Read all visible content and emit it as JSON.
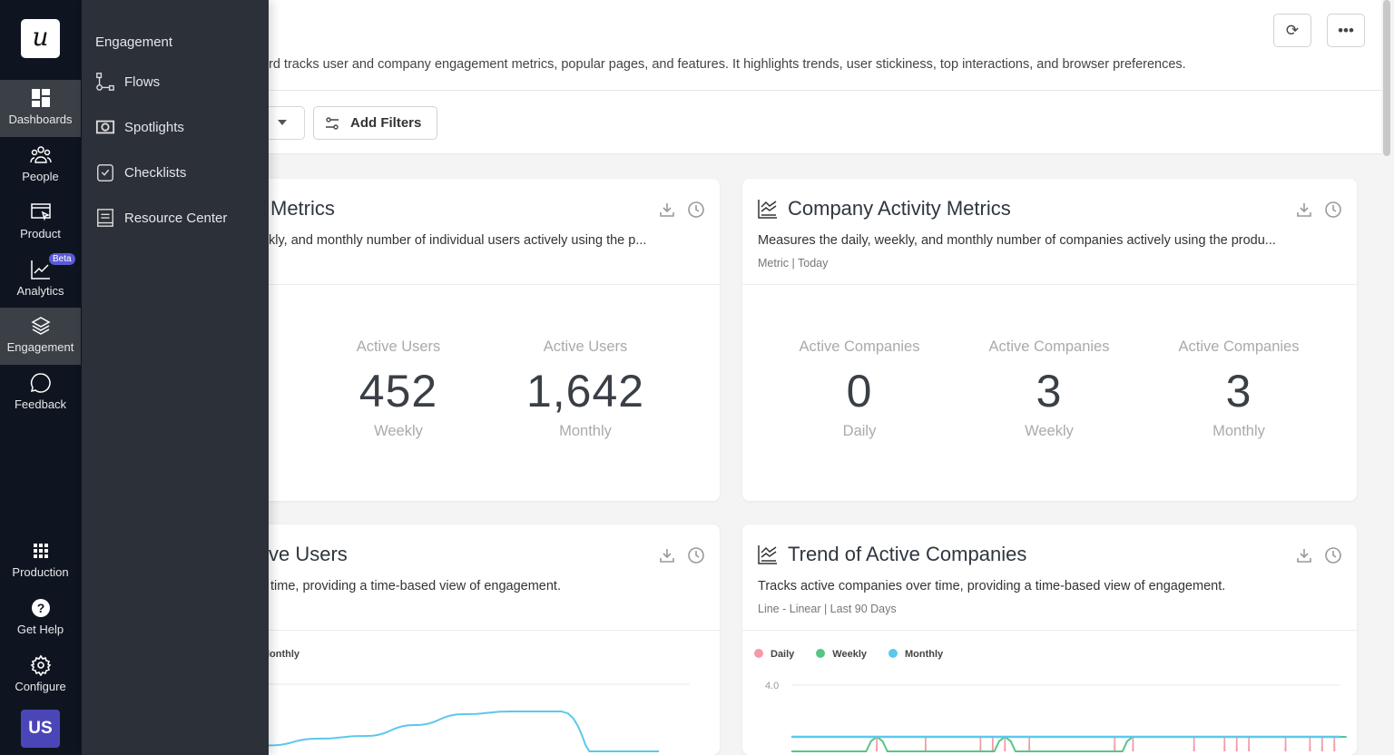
{
  "rail": {
    "logo": "u",
    "items": [
      {
        "label": "Dashboards"
      },
      {
        "label": "People"
      },
      {
        "label": "Product"
      },
      {
        "label": "Analytics",
        "badge": "Beta"
      },
      {
        "label": "Engagement"
      },
      {
        "label": "Feedback"
      },
      {
        "label": "Production"
      },
      {
        "label": "Get Help"
      },
      {
        "label": "Configure"
      }
    ],
    "avatar": "US",
    "active": [
      "Dashboards",
      "Engagement"
    ]
  },
  "flyout": {
    "heading": "Engagement",
    "items": [
      {
        "label": "Flows",
        "icon": "flows-icon"
      },
      {
        "label": "Spotlights",
        "icon": "spotlight-icon"
      },
      {
        "label": "Checklists",
        "icon": "checklist-icon"
      },
      {
        "label": "Resource Center",
        "icon": "resource-center-icon"
      }
    ]
  },
  "header": {
    "description": "rd tracks user and company engagement metrics, popular pages, and features. It highlights trends, user stickiness, top interactions, and browser preferences.",
    "add_filters": "Add Filters",
    "refresh_icon": "refresh-icon",
    "more_icon": "more-icon"
  },
  "cards": {
    "user_metrics": {
      "title": "Metrics",
      "description": "kly, and monthly number of individual users actively using the p...",
      "metrics": [
        {
          "label": "Active Users",
          "value": "452",
          "period": "Weekly"
        },
        {
          "label": "Active Users",
          "value": "1,642",
          "period": "Monthly"
        }
      ]
    },
    "company_metrics": {
      "title": "Company Activity Metrics",
      "description": "Measures the daily, weekly, and monthly number of companies actively using the produ...",
      "meta": "Metric | Today",
      "metrics": [
        {
          "label": "Active Companies",
          "value": "0",
          "period": "Daily"
        },
        {
          "label": "Active Companies",
          "value": "3",
          "period": "Weekly"
        },
        {
          "label": "Active Companies",
          "value": "3",
          "period": "Monthly"
        }
      ]
    },
    "trend_users": {
      "title": "ve Users",
      "description": "time, providing a time-based view of engagement.",
      "legend": "lonthly"
    },
    "trend_companies": {
      "title": "Trend of Active Companies",
      "description": "Tracks active companies over time, providing a time-based view of engagement.",
      "meta": "Line - Linear | Last 90 Days"
    }
  },
  "chart_data": [
    {
      "type": "line",
      "legend": [
        {
          "name": "Monthly",
          "color": "#5bc8ec"
        }
      ],
      "series": [
        {
          "name": "Monthly",
          "values": [
            0.55,
            0.6,
            0.62,
            0.7,
            0.78,
            0.8,
            0.8,
            0.3,
            -0.6
          ]
        }
      ],
      "ylim": [
        0,
        1
      ]
    },
    {
      "type": "line",
      "y_ticks": [
        "4.0"
      ],
      "ylim": [
        0,
        4
      ],
      "grid": true,
      "legend_position": "top-left",
      "series": [
        {
          "name": "Daily",
          "color": "#f29aa8",
          "spike_days": [
            14,
            22,
            31,
            33,
            35,
            39,
            53,
            56,
            66,
            71,
            73,
            75,
            81,
            85,
            87,
            89
          ],
          "spike_value": 3
        },
        {
          "name": "Weekly",
          "color": "#5ac486",
          "values": [
            0,
            0,
            3,
            0,
            0,
            3,
            0,
            0,
            3,
            3,
            3,
            3,
            3,
            3
          ]
        },
        {
          "name": "Monthly",
          "color": "#5bc8ec",
          "values": [
            3,
            3
          ]
        }
      ]
    }
  ]
}
